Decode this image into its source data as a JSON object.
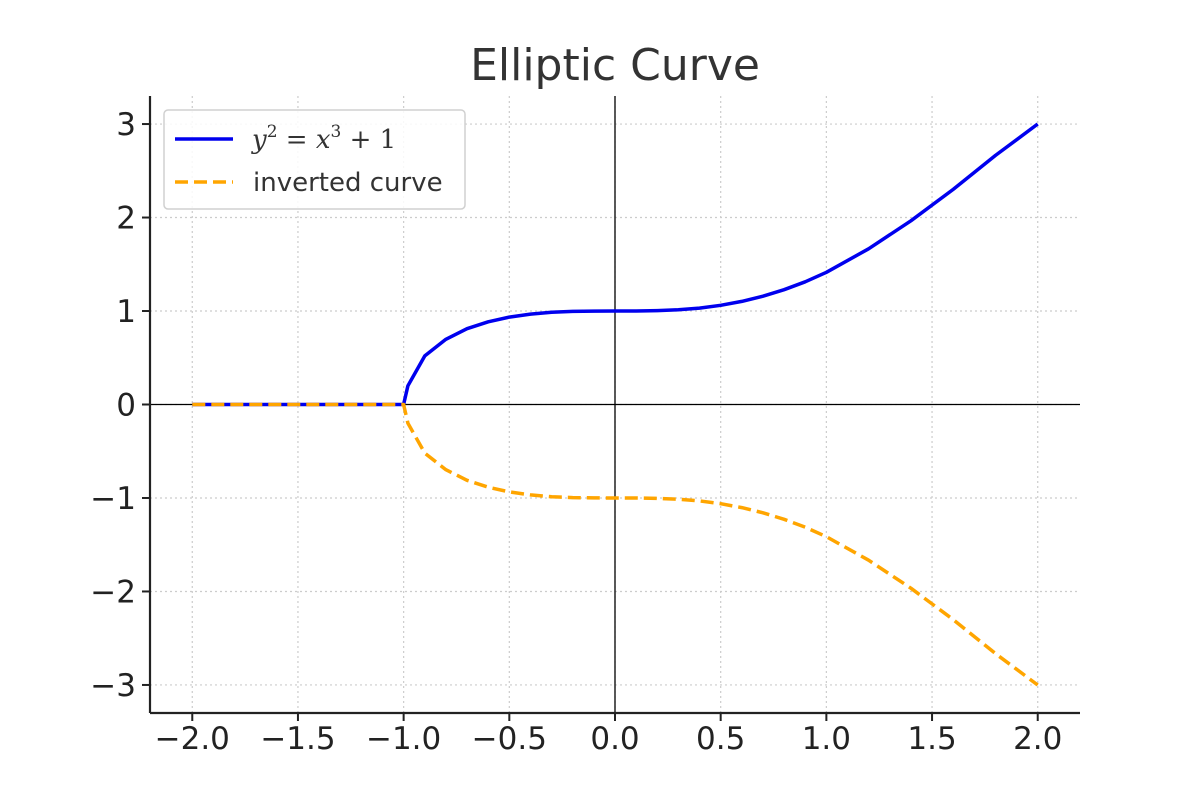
{
  "chart_data": {
    "type": "line",
    "title": "Elliptic Curve",
    "xlabel": "",
    "ylabel": "",
    "xlim": [
      -2.2,
      2.2
    ],
    "ylim": [
      -3.3,
      3.3
    ],
    "x_ticks": [
      -2.0,
      -1.5,
      -1.0,
      -0.5,
      0.0,
      0.5,
      1.0,
      1.5,
      2.0
    ],
    "x_tick_labels": [
      "−2.0",
      "−1.5",
      "−1.0",
      "−0.5",
      "0.0",
      "0.5",
      "1.0",
      "1.5",
      "2.0"
    ],
    "y_ticks": [
      -3,
      -2,
      -1,
      0,
      1,
      2,
      3
    ],
    "y_tick_labels": [
      "−3",
      "−2",
      "−1",
      "0",
      "1",
      "2",
      "3"
    ],
    "grid": true,
    "legend_position": "top-left",
    "series": [
      {
        "name_parts": [
          "y",
          "2",
          " = ",
          "x",
          "3",
          " + 1"
        ],
        "color": "#0000ee",
        "style": "solid",
        "x": [
          -2.0,
          -1.5,
          -1.0,
          -0.98,
          -0.9,
          -0.8,
          -0.7,
          -0.6,
          -0.5,
          -0.4,
          -0.3,
          -0.2,
          -0.1,
          0.0,
          0.1,
          0.2,
          0.3,
          0.4,
          0.5,
          0.6,
          0.7,
          0.8,
          0.9,
          1.0,
          1.2,
          1.4,
          1.6,
          1.8,
          2.0
        ],
        "y": [
          0.0,
          0.0,
          0.0,
          0.2,
          0.52,
          0.697,
          0.811,
          0.885,
          0.935,
          0.967,
          0.986,
          0.996,
          0.9995,
          1.0,
          1.0005,
          1.004,
          1.013,
          1.031,
          1.061,
          1.103,
          1.158,
          1.228,
          1.312,
          1.414,
          1.666,
          1.965,
          2.301,
          2.665,
          3.0
        ]
      },
      {
        "name": "inverted curve",
        "color": "#ffa500",
        "style": "dashed",
        "x": [
          -2.0,
          -1.5,
          -1.0,
          -0.98,
          -0.9,
          -0.8,
          -0.7,
          -0.6,
          -0.5,
          -0.4,
          -0.3,
          -0.2,
          -0.1,
          0.0,
          0.1,
          0.2,
          0.3,
          0.4,
          0.5,
          0.6,
          0.7,
          0.8,
          0.9,
          1.0,
          1.2,
          1.4,
          1.6,
          1.8,
          2.0
        ],
        "y": [
          0.0,
          0.0,
          0.0,
          -0.2,
          -0.52,
          -0.697,
          -0.811,
          -0.885,
          -0.935,
          -0.967,
          -0.986,
          -0.996,
          -0.9995,
          -1.0,
          -1.0005,
          -1.004,
          -1.013,
          -1.031,
          -1.061,
          -1.103,
          -1.158,
          -1.228,
          -1.312,
          -1.414,
          -1.666,
          -1.965,
          -2.301,
          -2.665,
          -3.0
        ]
      }
    ]
  }
}
